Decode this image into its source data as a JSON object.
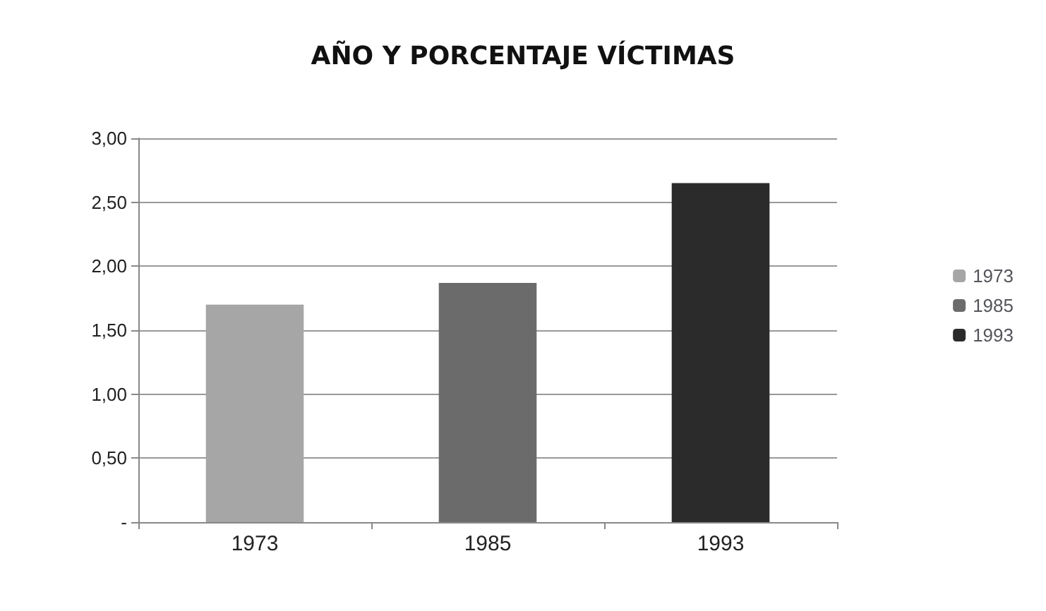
{
  "chart_data": {
    "type": "bar",
    "title": "AÑO Y PORCENTAJE VÍCTIMAS",
    "categories": [
      "1973",
      "1985",
      "1993"
    ],
    "series": [
      {
        "name": "1973",
        "color": "#a6a6a6",
        "values": [
          1.7,
          null,
          null
        ]
      },
      {
        "name": "1985",
        "color": "#6b6b6b",
        "values": [
          null,
          1.87,
          null
        ]
      },
      {
        "name": "1993",
        "color": "#2b2b2b",
        "values": [
          null,
          null,
          2.65
        ]
      }
    ],
    "ylim": [
      0,
      3
    ],
    "yticks": [
      {
        "value": 0,
        "label": "-"
      },
      {
        "value": 0.5,
        "label": "0,50"
      },
      {
        "value": 1,
        "label": "1,00"
      },
      {
        "value": 1.5,
        "label": "1,50"
      },
      {
        "value": 2,
        "label": "2,00"
      },
      {
        "value": 2.5,
        "label": "2,50"
      },
      {
        "value": 3,
        "label": "3,00"
      }
    ],
    "grid": "y",
    "legend": "right"
  }
}
